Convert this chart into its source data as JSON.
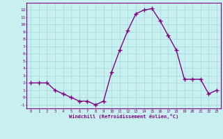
{
  "x": [
    0,
    1,
    2,
    3,
    4,
    5,
    6,
    7,
    8,
    9,
    10,
    11,
    12,
    13,
    14,
    15,
    16,
    17,
    18,
    19,
    20,
    21,
    22,
    23
  ],
  "y": [
    2,
    2,
    2,
    1,
    0.5,
    0,
    -0.5,
    -0.5,
    -1,
    -0.5,
    3.5,
    6.5,
    9.2,
    11.5,
    12,
    12.2,
    10.5,
    8.5,
    6.5,
    2.5,
    2.5,
    2.5,
    0.5,
    1
  ],
  "line_color": "#800080",
  "marker_color": "#800080",
  "background_color": "#c8f0f0",
  "grid_color": "#a0d8d8",
  "xlabel": "Windchill (Refroidissement éolien,°C)",
  "xlabel_color": "#800080",
  "tick_color": "#800080",
  "ylim": [
    -1.5,
    13
  ],
  "xlim": [
    -0.5,
    23.5
  ],
  "yticks": [
    -1,
    0,
    1,
    2,
    3,
    4,
    5,
    6,
    7,
    8,
    9,
    10,
    11,
    12
  ],
  "xticks": [
    0,
    1,
    2,
    3,
    4,
    5,
    6,
    7,
    8,
    9,
    10,
    11,
    12,
    13,
    14,
    15,
    16,
    17,
    18,
    19,
    20,
    21,
    22,
    23
  ],
  "marker_size": 4,
  "line_width": 1.0
}
